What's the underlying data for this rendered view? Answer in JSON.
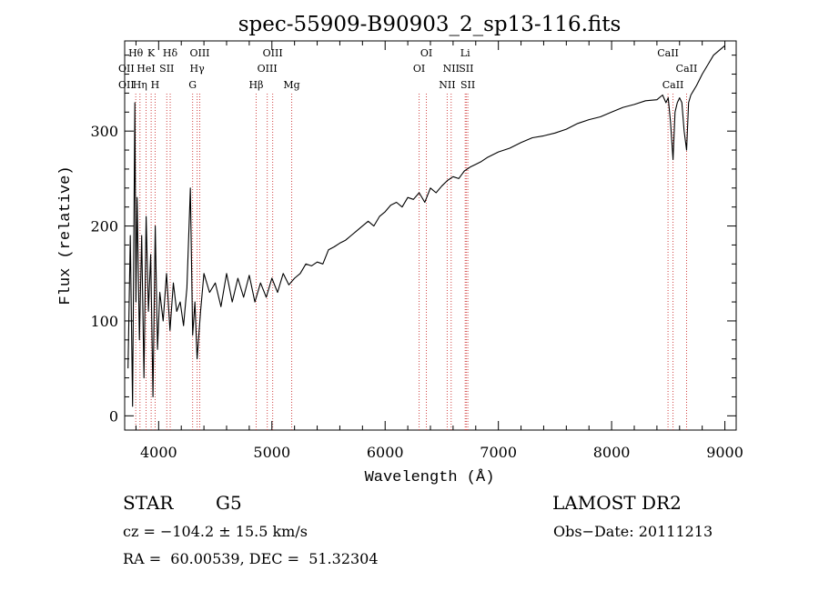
{
  "chart_data": {
    "type": "line",
    "title": "spec-55909-B90903_2_sp13-116.fits",
    "xlabel": "Wavelength (Å)",
    "ylabel": "Flux (relative)",
    "xlim": [
      3700,
      9100
    ],
    "ylim": [
      -15,
      395
    ],
    "x_ticks": [
      4000,
      5000,
      6000,
      7000,
      8000,
      9000
    ],
    "y_ticks": [
      0,
      100,
      200,
      300
    ],
    "grid": false,
    "line_color": "#000000",
    "marker_color": "#d04040",
    "series": [
      {
        "x": [
          3730,
          3750,
          3770,
          3790,
          3800,
          3810,
          3830,
          3850,
          3870,
          3890,
          3910,
          3930,
          3950,
          3970,
          3990,
          4010,
          4040,
          4070,
          4100,
          4130,
          4160,
          4190,
          4220,
          4250,
          4280,
          4300,
          4320,
          4340,
          4370,
          4400,
          4450,
          4500,
          4550,
          4600,
          4650,
          4700,
          4750,
          4800,
          4850,
          4900,
          4950,
          5000,
          5050,
          5100,
          5150,
          5200,
          5250,
          5300,
          5350,
          5400,
          5450,
          5500,
          5550,
          5600,
          5650,
          5700,
          5750,
          5800,
          5850,
          5900,
          5950,
          6000,
          6050,
          6100,
          6150,
          6200,
          6250,
          6300,
          6350,
          6400,
          6450,
          6500,
          6550,
          6600,
          6650,
          6700,
          6750,
          6800,
          6850,
          6900,
          6950,
          7000,
          7100,
          7200,
          7300,
          7400,
          7500,
          7600,
          7700,
          7800,
          7900,
          8000,
          8100,
          8200,
          8300,
          8400,
          8450,
          8480,
          8500,
          8520,
          8542,
          8560,
          8580,
          8600,
          8620,
          8640,
          8662,
          8680,
          8700,
          8750,
          8800,
          8850,
          8900,
          8950,
          9000
        ],
        "y": [
          50,
          190,
          10,
          330,
          120,
          230,
          80,
          190,
          40,
          210,
          110,
          170,
          20,
          200,
          70,
          130,
          100,
          150,
          90,
          140,
          110,
          120,
          95,
          135,
          240,
          85,
          120,
          60,
          110,
          150,
          130,
          140,
          115,
          150,
          120,
          145,
          125,
          148,
          120,
          140,
          125,
          145,
          130,
          150,
          138,
          145,
          150,
          160,
          158,
          162,
          160,
          175,
          178,
          182,
          185,
          190,
          195,
          200,
          205,
          200,
          210,
          215,
          222,
          225,
          220,
          230,
          228,
          235,
          225,
          240,
          235,
          242,
          248,
          252,
          250,
          258,
          262,
          265,
          268,
          272,
          275,
          278,
          282,
          288,
          293,
          295,
          298,
          302,
          308,
          312,
          315,
          320,
          325,
          328,
          332,
          333,
          338,
          330,
          335,
          310,
          270,
          320,
          330,
          335,
          330,
          300,
          280,
          330,
          338,
          348,
          360,
          370,
          380,
          385,
          390
        ]
      }
    ],
    "line_markers": [
      {
        "x": 3798,
        "label": "Hθ",
        "row": 0
      },
      {
        "x": 3835,
        "label": "Hη",
        "row": 2
      },
      {
        "x": 3889,
        "label": "HeI",
        "row": 1
      },
      {
        "x": 3934,
        "label": "K",
        "row": 0
      },
      {
        "x": 3969,
        "label": "H",
        "row": 2
      },
      {
        "x": 4072,
        "label": "SII",
        "row": 1
      },
      {
        "x": 4102,
        "label": "Hδ",
        "row": 0
      },
      {
        "x": 4300,
        "label": "G",
        "row": 2
      },
      {
        "x": 4340,
        "label": "Hγ",
        "row": 1
      },
      {
        "x": 4363,
        "label": "OIII",
        "row": 0
      },
      {
        "x": 4861,
        "label": "Hβ",
        "row": 2
      },
      {
        "x": 4959,
        "label": "OIII",
        "row": 1
      },
      {
        "x": 5007,
        "label": "OIII",
        "row": 0
      },
      {
        "x": 5175,
        "label": "Mg",
        "row": 2
      },
      {
        "x": 6300,
        "label": "OI",
        "row": 1
      },
      {
        "x": 6364,
        "label": "OI",
        "row": 0
      },
      {
        "x": 6548,
        "label": "NII",
        "row": 2
      },
      {
        "x": 6583,
        "label": "NII",
        "row": 1
      },
      {
        "x": 6707,
        "label": "Li",
        "row": 0
      },
      {
        "x": 6716,
        "label": "SII",
        "row": 1
      },
      {
        "x": 6730,
        "label": "SII",
        "row": 2
      },
      {
        "x": 8498,
        "label": "CaII",
        "row": 0
      },
      {
        "x": 8542,
        "label": "CaII",
        "row": 2
      },
      {
        "x": 8662,
        "label": "CaII",
        "row": 1
      }
    ],
    "left_stub_labels": [
      {
        "label": "OII",
        "row": 1
      },
      {
        "label": "OII",
        "row": 2
      }
    ]
  },
  "info": {
    "object_type": "STAR",
    "subclass": "G5",
    "survey": "LAMOST DR2",
    "cz": "cz = −104.2 ± 15.5 km/s",
    "obs_date": "Obs−Date: 20111213",
    "coords": "RA =  60.00539, DEC =  51.32304"
  }
}
